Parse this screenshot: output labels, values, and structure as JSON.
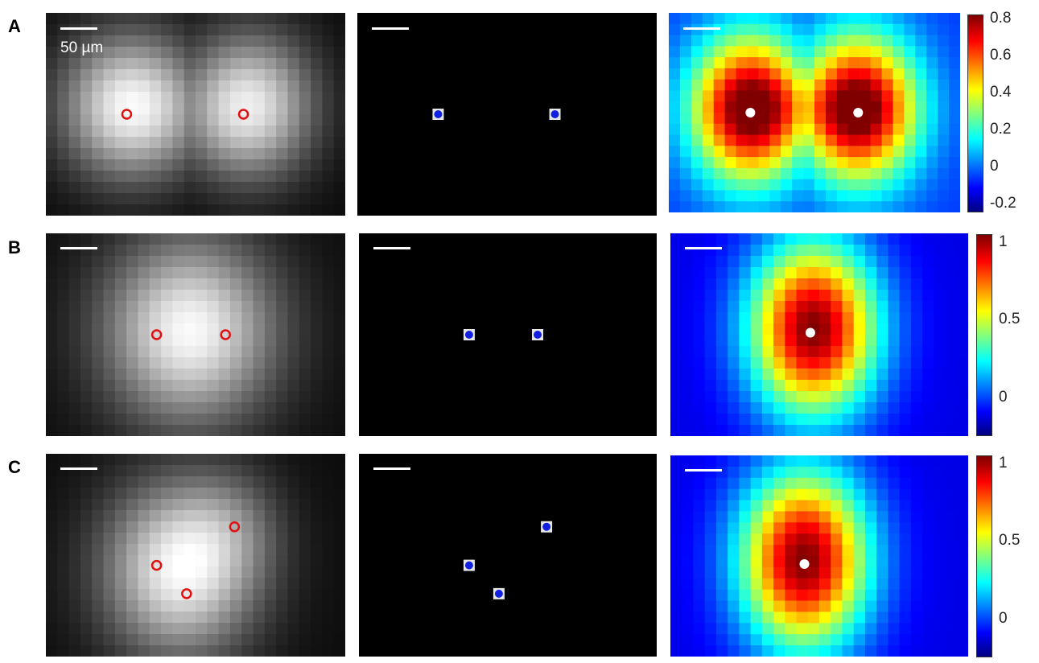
{
  "figure": {
    "rows": [
      {
        "label": "A",
        "scale_text": "50 µm",
        "colorbar": {
          "ticks": [
            "0.8",
            "0.6",
            "0.4",
            "0.2",
            "0",
            "-0.2"
          ],
          "range": [
            -0.25,
            0.82
          ]
        }
      },
      {
        "label": "B",
        "scale_text": "",
        "colorbar": {
          "ticks": [
            "1",
            "0.5",
            "0"
          ],
          "range": [
            -0.25,
            1.05
          ]
        }
      },
      {
        "label": "C",
        "scale_text": "",
        "colorbar": {
          "ticks": [
            "1",
            "0.5",
            "0"
          ],
          "range": [
            -0.25,
            1.05
          ]
        }
      }
    ],
    "colors": {
      "marker_ring": "#e01010",
      "source_dot": "#1020e0",
      "peak_dot": "#ffffff",
      "scalebar": "#ffffff"
    }
  }
}
